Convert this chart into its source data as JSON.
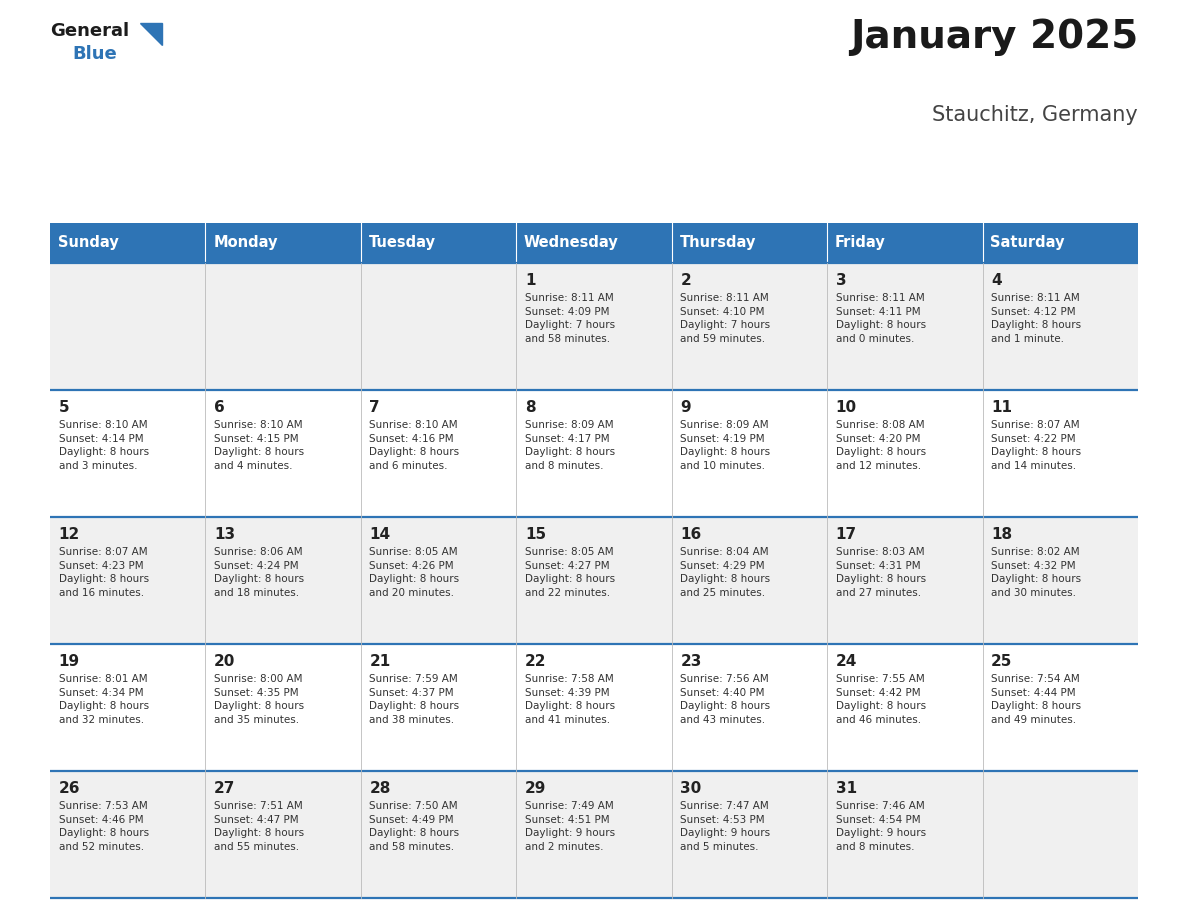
{
  "title": "January 2025",
  "subtitle": "Stauchitz, Germany",
  "days_of_week": [
    "Sunday",
    "Monday",
    "Tuesday",
    "Wednesday",
    "Thursday",
    "Friday",
    "Saturday"
  ],
  "header_bg": "#2E74B5",
  "header_text": "#FFFFFF",
  "row_bg_odd": "#F0F0F0",
  "row_bg_even": "#FFFFFF",
  "cell_border": "#2E74B5",
  "day_num_color": "#222222",
  "info_text_color": "#333333",
  "title_color": "#1a1a1a",
  "subtitle_color": "#444444",
  "weeks": [
    [
      {
        "day": null,
        "info": ""
      },
      {
        "day": null,
        "info": ""
      },
      {
        "day": null,
        "info": ""
      },
      {
        "day": 1,
        "info": "Sunrise: 8:11 AM\nSunset: 4:09 PM\nDaylight: 7 hours\nand 58 minutes."
      },
      {
        "day": 2,
        "info": "Sunrise: 8:11 AM\nSunset: 4:10 PM\nDaylight: 7 hours\nand 59 minutes."
      },
      {
        "day": 3,
        "info": "Sunrise: 8:11 AM\nSunset: 4:11 PM\nDaylight: 8 hours\nand 0 minutes."
      },
      {
        "day": 4,
        "info": "Sunrise: 8:11 AM\nSunset: 4:12 PM\nDaylight: 8 hours\nand 1 minute."
      }
    ],
    [
      {
        "day": 5,
        "info": "Sunrise: 8:10 AM\nSunset: 4:14 PM\nDaylight: 8 hours\nand 3 minutes."
      },
      {
        "day": 6,
        "info": "Sunrise: 8:10 AM\nSunset: 4:15 PM\nDaylight: 8 hours\nand 4 minutes."
      },
      {
        "day": 7,
        "info": "Sunrise: 8:10 AM\nSunset: 4:16 PM\nDaylight: 8 hours\nand 6 minutes."
      },
      {
        "day": 8,
        "info": "Sunrise: 8:09 AM\nSunset: 4:17 PM\nDaylight: 8 hours\nand 8 minutes."
      },
      {
        "day": 9,
        "info": "Sunrise: 8:09 AM\nSunset: 4:19 PM\nDaylight: 8 hours\nand 10 minutes."
      },
      {
        "day": 10,
        "info": "Sunrise: 8:08 AM\nSunset: 4:20 PM\nDaylight: 8 hours\nand 12 minutes."
      },
      {
        "day": 11,
        "info": "Sunrise: 8:07 AM\nSunset: 4:22 PM\nDaylight: 8 hours\nand 14 minutes."
      }
    ],
    [
      {
        "day": 12,
        "info": "Sunrise: 8:07 AM\nSunset: 4:23 PM\nDaylight: 8 hours\nand 16 minutes."
      },
      {
        "day": 13,
        "info": "Sunrise: 8:06 AM\nSunset: 4:24 PM\nDaylight: 8 hours\nand 18 minutes."
      },
      {
        "day": 14,
        "info": "Sunrise: 8:05 AM\nSunset: 4:26 PM\nDaylight: 8 hours\nand 20 minutes."
      },
      {
        "day": 15,
        "info": "Sunrise: 8:05 AM\nSunset: 4:27 PM\nDaylight: 8 hours\nand 22 minutes."
      },
      {
        "day": 16,
        "info": "Sunrise: 8:04 AM\nSunset: 4:29 PM\nDaylight: 8 hours\nand 25 minutes."
      },
      {
        "day": 17,
        "info": "Sunrise: 8:03 AM\nSunset: 4:31 PM\nDaylight: 8 hours\nand 27 minutes."
      },
      {
        "day": 18,
        "info": "Sunrise: 8:02 AM\nSunset: 4:32 PM\nDaylight: 8 hours\nand 30 minutes."
      }
    ],
    [
      {
        "day": 19,
        "info": "Sunrise: 8:01 AM\nSunset: 4:34 PM\nDaylight: 8 hours\nand 32 minutes."
      },
      {
        "day": 20,
        "info": "Sunrise: 8:00 AM\nSunset: 4:35 PM\nDaylight: 8 hours\nand 35 minutes."
      },
      {
        "day": 21,
        "info": "Sunrise: 7:59 AM\nSunset: 4:37 PM\nDaylight: 8 hours\nand 38 minutes."
      },
      {
        "day": 22,
        "info": "Sunrise: 7:58 AM\nSunset: 4:39 PM\nDaylight: 8 hours\nand 41 minutes."
      },
      {
        "day": 23,
        "info": "Sunrise: 7:56 AM\nSunset: 4:40 PM\nDaylight: 8 hours\nand 43 minutes."
      },
      {
        "day": 24,
        "info": "Sunrise: 7:55 AM\nSunset: 4:42 PM\nDaylight: 8 hours\nand 46 minutes."
      },
      {
        "day": 25,
        "info": "Sunrise: 7:54 AM\nSunset: 4:44 PM\nDaylight: 8 hours\nand 49 minutes."
      }
    ],
    [
      {
        "day": 26,
        "info": "Sunrise: 7:53 AM\nSunset: 4:46 PM\nDaylight: 8 hours\nand 52 minutes."
      },
      {
        "day": 27,
        "info": "Sunrise: 7:51 AM\nSunset: 4:47 PM\nDaylight: 8 hours\nand 55 minutes."
      },
      {
        "day": 28,
        "info": "Sunrise: 7:50 AM\nSunset: 4:49 PM\nDaylight: 8 hours\nand 58 minutes."
      },
      {
        "day": 29,
        "info": "Sunrise: 7:49 AM\nSunset: 4:51 PM\nDaylight: 9 hours\nand 2 minutes."
      },
      {
        "day": 30,
        "info": "Sunrise: 7:47 AM\nSunset: 4:53 PM\nDaylight: 9 hours\nand 5 minutes."
      },
      {
        "day": 31,
        "info": "Sunrise: 7:46 AM\nSunset: 4:54 PM\nDaylight: 9 hours\nand 8 minutes."
      },
      {
        "day": null,
        "info": ""
      }
    ]
  ]
}
